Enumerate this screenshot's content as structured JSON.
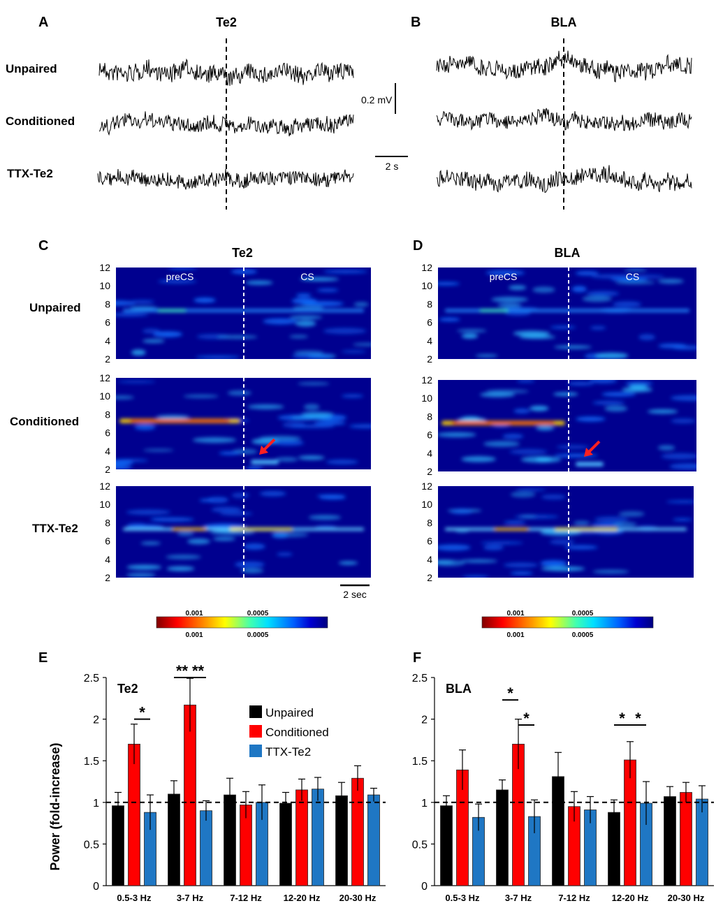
{
  "panels": {
    "A": {
      "letter": "A",
      "title": "Te2"
    },
    "B": {
      "letter": "B",
      "title": "BLA"
    },
    "C": {
      "letter": "C",
      "title": "Te2"
    },
    "D": {
      "letter": "D",
      "title": "BLA"
    },
    "E": {
      "letter": "E"
    },
    "F": {
      "letter": "F"
    }
  },
  "rows": [
    "Unpaired",
    "Conditioned",
    "TTX-Te2"
  ],
  "traces": {
    "scale_voltage": "0.2 mV",
    "scale_time": "2 s"
  },
  "spectrograms": {
    "y_ticks": [
      "12",
      "10",
      "8",
      "6",
      "4",
      "2"
    ],
    "pre_label": "preCS",
    "cs_label": "CS",
    "scale_time": "2 sec",
    "colorbar_left_labels": [
      "0.001",
      "0.0005"
    ],
    "colorbar_right_labels": [
      "0.001",
      "0.0005"
    ]
  },
  "chart_data": [
    {
      "type": "bar",
      "title": "Te2",
      "ylabel": "Power (fold-increase)",
      "xlabel": "",
      "ylim": [
        0,
        2.5
      ],
      "yticks": [
        "0",
        "0.5",
        "1",
        "1.5",
        "2",
        "2.5"
      ],
      "reference_line": 1,
      "categories": [
        "0.5-3 Hz",
        "3-7 Hz",
        "7-12 Hz",
        "12-20 Hz",
        "20-30 Hz"
      ],
      "series": [
        {
          "name": "Unpaired",
          "color": "#000000",
          "values": [
            0.96,
            1.1,
            1.09,
            0.99,
            1.08
          ],
          "errors": [
            0.16,
            0.16,
            0.2,
            0.13,
            0.16
          ]
        },
        {
          "name": "Conditioned",
          "color": "#ff0000",
          "values": [
            1.7,
            2.17,
            0.97,
            1.15,
            1.29
          ],
          "errors": [
            0.24,
            0.32,
            0.16,
            0.13,
            0.15
          ]
        },
        {
          "name": "TTX-Te2",
          "color": "#1f77c4",
          "values": [
            0.88,
            0.9,
            1.0,
            1.16,
            1.09
          ],
          "errors": [
            0.21,
            0.12,
            0.21,
            0.14,
            0.08
          ]
        }
      ],
      "significance": [
        {
          "label": "*",
          "category": 0,
          "from": 1,
          "to": 2,
          "level": 2.0
        },
        {
          "label": "**",
          "category": 1,
          "from": 0,
          "to": 1,
          "level": 2.5
        },
        {
          "label": "**",
          "category": 1,
          "from": 1,
          "to": 2,
          "level": 2.5
        }
      ]
    },
    {
      "type": "bar",
      "title": "BLA",
      "ylabel": "",
      "xlabel": "",
      "ylim": [
        0,
        2.5
      ],
      "yticks": [
        "0",
        "0.5",
        "1",
        "1.5",
        "2",
        "2.5"
      ],
      "reference_line": 1,
      "categories": [
        "0.5-3 Hz",
        "3-7 Hz",
        "7-12 Hz",
        "12-20 Hz",
        "20-30 Hz"
      ],
      "series": [
        {
          "name": "Unpaired",
          "color": "#000000",
          "values": [
            0.96,
            1.15,
            1.31,
            0.88,
            1.07
          ],
          "errors": [
            0.12,
            0.12,
            0.29,
            0.15,
            0.12
          ]
        },
        {
          "name": "Conditioned",
          "color": "#ff0000",
          "values": [
            1.39,
            1.7,
            0.95,
            1.51,
            1.12
          ],
          "errors": [
            0.24,
            0.3,
            0.18,
            0.22,
            0.12
          ]
        },
        {
          "name": "TTX-Te2",
          "color": "#1f77c4",
          "values": [
            0.82,
            0.83,
            0.91,
            0.99,
            1.04
          ],
          "errors": [
            0.16,
            0.2,
            0.16,
            0.26,
            0.16
          ]
        }
      ],
      "significance": [
        {
          "label": "*",
          "category": 1,
          "from": 0,
          "to": 1,
          "level": 2.23
        },
        {
          "label": "*",
          "category": 1,
          "from": 1,
          "to": 2,
          "level": 1.93
        },
        {
          "label": "*",
          "category": 3,
          "from": 0,
          "to": 1,
          "level": 1.93
        },
        {
          "label": "*",
          "category": 3,
          "from": 1,
          "to": 2,
          "level": 1.93
        }
      ]
    }
  ],
  "colors": {
    "unpaired": "#000000",
    "conditioned": "#ff0000",
    "ttx": "#1f77c4",
    "spectrogram_bg": "#00008f",
    "arrow": "#ff2020"
  }
}
